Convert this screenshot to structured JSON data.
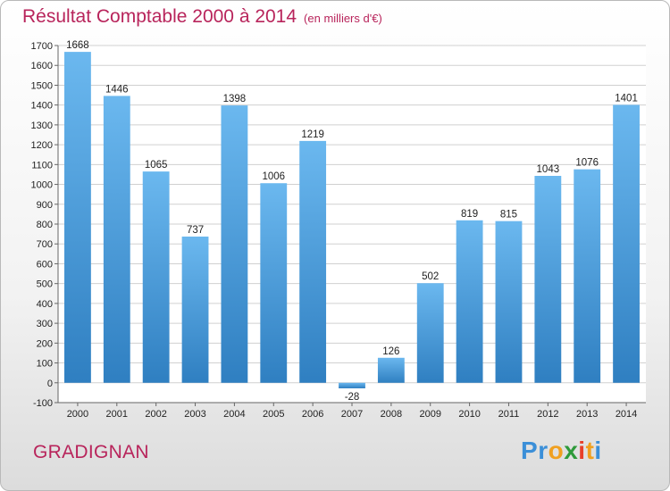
{
  "title": "Résultat Comptable 2000 à 2014",
  "subtitle": "(en milliers d'€)",
  "town": "GRADIGNAN",
  "logo": {
    "letters": [
      "P",
      "r",
      "o",
      "x",
      "i",
      "t",
      "i"
    ],
    "colors": [
      "#3b8fd8",
      "#3b8fd8",
      "#f0a020",
      "#2e9a3a",
      "#e8402a",
      "#f0a020",
      "#3b8fd8"
    ]
  },
  "colors": {
    "bar_top": "#6bb8ef",
    "bar_bottom": "#2f7fc1",
    "text": "#b8245b",
    "grid": "#d0d0d0"
  },
  "chart_data": {
    "type": "bar",
    "categories": [
      "2000",
      "2001",
      "2002",
      "2003",
      "2004",
      "2005",
      "2006",
      "2007",
      "2008",
      "2009",
      "2010",
      "2011",
      "2012",
      "2013",
      "2014"
    ],
    "values": [
      1668,
      1446,
      1065,
      737,
      1398,
      1006,
      1219,
      -28,
      126,
      502,
      819,
      815,
      1043,
      1076,
      1401
    ],
    "ylim": [
      -100,
      1700
    ],
    "yticks": [
      -100,
      0,
      100,
      200,
      300,
      400,
      500,
      600,
      700,
      800,
      900,
      1000,
      1100,
      1200,
      1300,
      1400,
      1500,
      1600,
      1700
    ],
    "grid": true,
    "legend": "none"
  }
}
